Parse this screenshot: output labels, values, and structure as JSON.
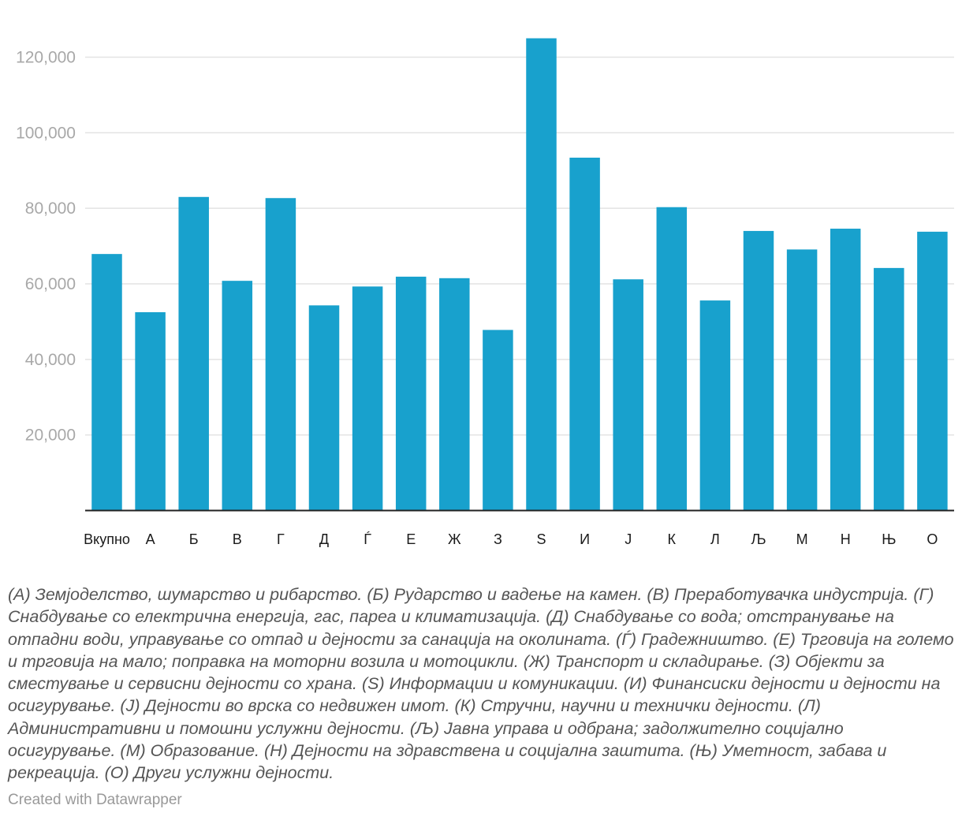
{
  "chart_data": {
    "type": "bar",
    "categories": [
      "Вкупно",
      "А",
      "Б",
      "В",
      "Г",
      "Д",
      "Ѓ",
      "Е",
      "Ж",
      "З",
      "Ѕ",
      "И",
      "Ј",
      "К",
      "Л",
      "Љ",
      "М",
      "Н",
      "Њ",
      "О"
    ],
    "values": [
      67900,
      52500,
      83000,
      60800,
      82700,
      54300,
      59300,
      61900,
      61500,
      47800,
      125000,
      93400,
      61200,
      80300,
      55600,
      74000,
      69100,
      74600,
      64200,
      73800
    ],
    "ylim": [
      0,
      130000
    ],
    "yticks": [
      20000,
      40000,
      60000,
      80000,
      100000,
      120000
    ],
    "ytick_labels": [
      "20,000",
      "40,000",
      "60,000",
      "80,000",
      "100,000",
      "120,000"
    ],
    "bar_color": "#18a1cd",
    "grid": true
  },
  "notes": "(А) Земјоделство, шумарство и рибарство. (Б) Рударство и вадење на камен. (В) Преработувачка индустрија. (Г) Снабдување со електрична енергија, гас, пареа и климатизација. (Д) Снабдување со вода; отстранување на отпадни води, управување со отпад и дејности за санација на околината. (Ѓ) Градежништво. (Е) Трговија на големо и трговија на мало; поправка на моторни возила и мотоцикли. (Ж) Транспорт и складирање. (З) Објекти за сместување и сервисни дејности со храна. (Ѕ) Информации и комуникации. (И) Финансиски дејности и дејности на осигурување. (Ј) Дејности во врска со недвижен имот. (К) Стручни, научни и технички дејности. (Л) Административни и помошни услужни дејности. (Љ) Јавна управа и одбрана; задолжително социјално осигурување. (М) Образование. (Н) Дејности на здравствена и социјална заштита. (Њ) Уметност, забава и рекреација. (О) Други услужни дејности.",
  "credit": "Created with Datawrapper"
}
